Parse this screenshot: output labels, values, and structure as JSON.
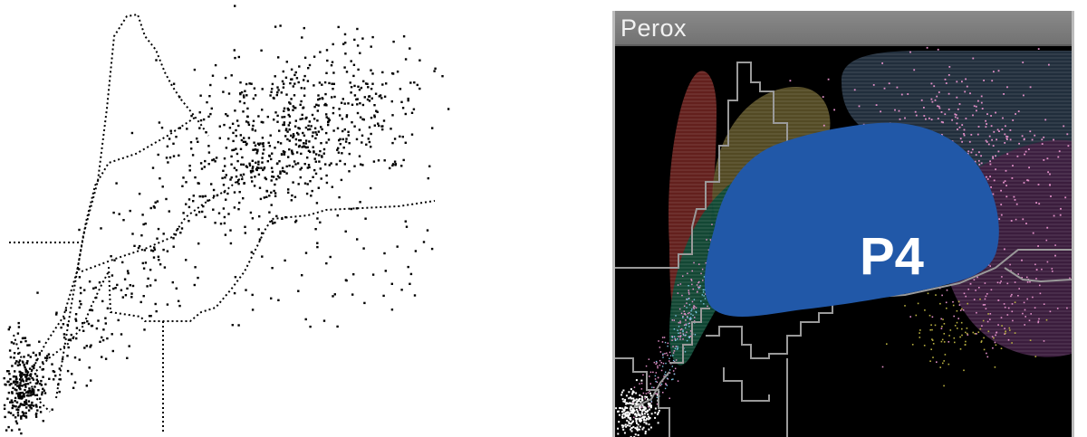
{
  "chart_data": [
    {
      "type": "scatter",
      "title": "",
      "xlabel": "",
      "ylabel": "",
      "grid": false,
      "legend": "none",
      "colors": {
        "points": "#000000",
        "gates": "#000000",
        "background": "#ffffff"
      }
    },
    {
      "type": "scatter",
      "title": "Perox",
      "xlabel": "",
      "ylabel": "",
      "grid": false,
      "legend": "none",
      "annotations": [
        "P4"
      ],
      "colors": {
        "background": "#000000",
        "title_bar": "#7f7f7f",
        "p4_region": "#2158a8",
        "gates": "#9a9a9a",
        "red_region": "#6e2420",
        "olive_region": "#5c5228",
        "green_region": "#0f4a36",
        "navy_region": "#23303f",
        "purple_region": "#3e1f40",
        "pink_points": "#e28fc8",
        "white_points": "#ffffff",
        "yellow_points": "#b8b040"
      }
    }
  ]
}
